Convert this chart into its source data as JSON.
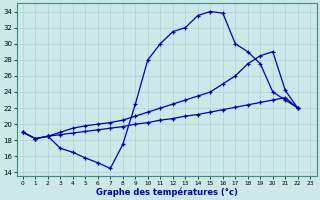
{
  "xlabel": "Graphe des températures (°c)",
  "bg_color": "#cce8e8",
  "line_color": "#0000bb",
  "grid_color": "#aad4d4",
  "ylim": [
    13.5,
    35.0
  ],
  "xlim": [
    -0.5,
    23.5
  ],
  "yticks": [
    14,
    16,
    18,
    20,
    22,
    24,
    26,
    28,
    30,
    32,
    34
  ],
  "xticks": [
    0,
    1,
    2,
    3,
    4,
    5,
    6,
    7,
    8,
    9,
    10,
    11,
    12,
    13,
    14,
    15,
    16,
    17,
    18,
    19,
    20,
    21,
    22,
    23
  ],
  "line1_x": [
    0,
    1,
    2,
    3,
    4,
    5,
    6,
    7,
    8,
    9,
    10,
    11,
    12,
    13,
    14,
    15,
    16,
    17,
    18,
    19,
    20,
    21,
    22
  ],
  "line1_y": [
    19.0,
    18.2,
    18.5,
    17.0,
    16.5,
    15.8,
    15.2,
    14.5,
    17.5,
    22.5,
    28.0,
    30.0,
    31.5,
    32.0,
    33.5,
    34.0,
    33.8,
    30.0,
    29.0,
    27.5,
    24.0,
    23.0,
    22.0
  ],
  "line2_x": [
    0,
    1,
    2,
    3,
    4,
    5,
    6,
    7,
    8,
    9,
    10,
    11,
    12,
    13,
    14,
    15,
    16,
    17,
    18,
    19,
    20,
    21,
    22
  ],
  "line2_y": [
    19.0,
    18.2,
    18.5,
    19.0,
    19.5,
    19.8,
    20.0,
    20.2,
    20.5,
    21.0,
    21.5,
    22.0,
    22.5,
    23.0,
    23.5,
    24.0,
    25.0,
    26.0,
    27.5,
    28.5,
    29.0,
    24.2,
    22.0
  ],
  "line3_x": [
    0,
    1,
    2,
    3,
    4,
    5,
    6,
    7,
    8,
    9,
    10,
    11,
    12,
    13,
    14,
    15,
    16,
    17,
    18,
    19,
    20,
    21,
    22
  ],
  "line3_y": [
    19.0,
    18.2,
    18.5,
    18.7,
    18.9,
    19.1,
    19.3,
    19.5,
    19.7,
    20.0,
    20.2,
    20.5,
    20.7,
    21.0,
    21.2,
    21.5,
    21.8,
    22.1,
    22.4,
    22.7,
    23.0,
    23.3,
    22.0
  ]
}
